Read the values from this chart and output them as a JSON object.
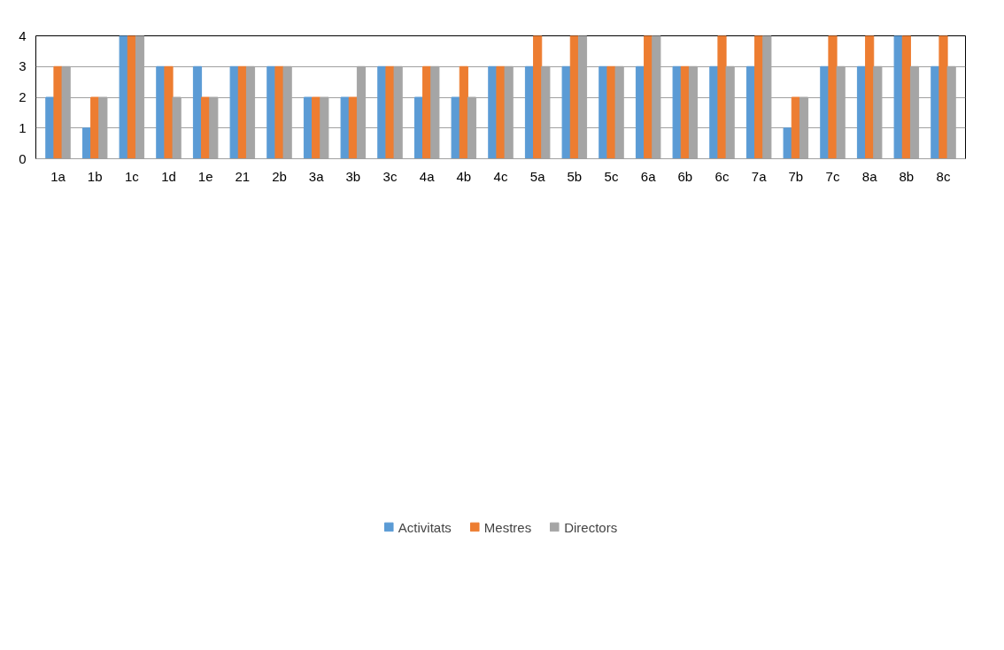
{
  "chart_data": {
    "type": "bar",
    "categories": [
      "1a",
      "1b",
      "1c",
      "1d",
      "1e",
      "21",
      "2b",
      "3a",
      "3b",
      "3c",
      "4a",
      "4b",
      "4c",
      "5a",
      "5b",
      "5c",
      "6a",
      "6b",
      "6c",
      "7a",
      "7b",
      "7c",
      "8a",
      "8b",
      "8c"
    ],
    "series": [
      {
        "name": "Activitats",
        "color": "#5b9bd5",
        "values": [
          2,
          1,
          4,
          3,
          3,
          3,
          3,
          2,
          2,
          3,
          2,
          2,
          3,
          3,
          3,
          3,
          3,
          3,
          3,
          3,
          1,
          3,
          3,
          4,
          3
        ]
      },
      {
        "name": "Mestres",
        "color": "#ed7d31",
        "values": [
          3,
          2,
          4,
          3,
          2,
          3,
          3,
          2,
          2,
          3,
          3,
          3,
          3,
          4,
          4,
          3,
          4,
          3,
          4,
          4,
          2,
          4,
          4,
          4,
          4
        ]
      },
      {
        "name": "Directors",
        "color": "#a5a5a5",
        "values": [
          3,
          2,
          4,
          2,
          2,
          3,
          3,
          2,
          3,
          3,
          3,
          2,
          3,
          3,
          4,
          3,
          4,
          3,
          3,
          4,
          2,
          3,
          3,
          3,
          3
        ]
      }
    ],
    "ylim": [
      0,
      4
    ],
    "yticks": [
      0,
      1,
      2,
      3,
      4
    ],
    "grid": "y",
    "legend": "bottom"
  }
}
